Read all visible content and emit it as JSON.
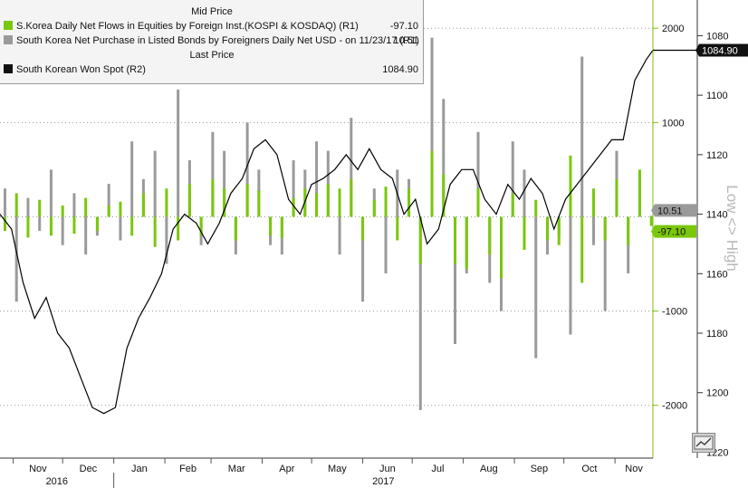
{
  "legend": {
    "header_mid": "Mid Price",
    "header_last": "Last Price",
    "entries": [
      {
        "swatch": "#7ac70c",
        "label": "S.Korea Daily Net Flows in Equities by Foreign Inst.(KOSPI & KOSDAQ)  (R1)",
        "value": "-97.10"
      },
      {
        "swatch": "#9a9a9a",
        "label": "South Korea Net Purchase in Listed Bonds by Foreigners Daily Net USD -  on 11/23/17  (R1)",
        "value": "10.51"
      },
      {
        "swatch": "#111111",
        "label": "South Korean Won Spot  (R2)",
        "value": "1084.90"
      }
    ]
  },
  "right_axis_r1": {
    "ticks": [
      2000,
      1000,
      -1000,
      -2000
    ],
    "tick_labels": [
      "2000",
      "1000",
      "-1000",
      "-2000"
    ],
    "ylim": [
      -2560,
      2300
    ]
  },
  "right_axis_r2": {
    "ticks": [
      1080,
      1100,
      1120,
      1140,
      1160,
      1180,
      1200,
      1220
    ],
    "tick_labels": [
      "1080",
      "1100",
      "1120",
      "1140",
      "1160",
      "1180",
      "1200",
      "1220"
    ],
    "ylim": [
      1222,
      1068
    ],
    "inverted": true,
    "title": "Low <> High"
  },
  "last_value_tags": [
    {
      "text": "1084.90",
      "bg": "#111111",
      "color": "#ffffff"
    },
    {
      "text": "10.51",
      "bg": "#9a9a9a",
      "color": "#111111"
    },
    {
      "text": "-97.10",
      "bg": "#7ac70c",
      "color": "#111111"
    }
  ],
  "x_axis": {
    "months": [
      "Nov",
      "Dec",
      "Jan",
      "Feb",
      "Mar",
      "Apr",
      "May",
      "Jun",
      "Jul",
      "Aug",
      "Sep",
      "Oct",
      "Nov"
    ],
    "years": [
      "2016",
      "2017"
    ]
  },
  "chart_data": {
    "type": "bar",
    "x_range": [
      "2016-10-24",
      "2017-11-24"
    ],
    "grid": true,
    "series": [
      {
        "axis": "R1",
        "type": "bar",
        "color": "#7ac70c",
        "sampled": "weekly",
        "x": [
          "2016-10-27",
          "2016-11-03",
          "2016-11-10",
          "2016-11-17",
          "2016-11-24",
          "2016-12-01",
          "2016-12-08",
          "2016-12-15",
          "2016-12-22",
          "2016-12-29",
          "2017-01-05",
          "2017-01-12",
          "2017-01-19",
          "2017-01-26",
          "2017-02-02",
          "2017-02-09",
          "2017-02-16",
          "2017-02-23",
          "2017-03-02",
          "2017-03-09",
          "2017-03-16",
          "2017-03-23",
          "2017-03-30",
          "2017-04-06",
          "2017-04-13",
          "2017-04-20",
          "2017-04-27",
          "2017-05-04",
          "2017-05-11",
          "2017-05-18",
          "2017-05-25",
          "2017-06-01",
          "2017-06-08",
          "2017-06-15",
          "2017-06-22",
          "2017-06-29",
          "2017-07-06",
          "2017-07-13",
          "2017-07-20",
          "2017-07-27",
          "2017-08-03",
          "2017-08-10",
          "2017-08-17",
          "2017-08-24",
          "2017-08-31",
          "2017-09-07",
          "2017-09-14",
          "2017-09-21",
          "2017-09-28",
          "2017-10-05",
          "2017-10-12",
          "2017-10-19",
          "2017-10-26",
          "2017-11-02",
          "2017-11-09",
          "2017-11-16",
          "2017-11-23"
        ],
        "values": [
          -150,
          250,
          -220,
          180,
          -200,
          120,
          -180,
          200,
          -150,
          120,
          160,
          -200,
          250,
          -320,
          300,
          -250,
          350,
          -200,
          400,
          300,
          -250,
          350,
          280,
          -200,
          -220,
          200,
          300,
          250,
          350,
          300,
          400,
          -250,
          180,
          320,
          -250,
          300,
          -500,
          700,
          450,
          -500,
          -550,
          300,
          -400,
          -650,
          250,
          -350,
          180,
          -250,
          -300,
          650,
          -700,
          300,
          -250,
          400,
          -300,
          500,
          -97.1
        ]
      },
      {
        "axis": "R1",
        "type": "bar",
        "color": "#9a9a9a",
        "sampled": "weekly",
        "x": [
          "2016-10-27",
          "2016-11-03",
          "2016-11-10",
          "2016-11-17",
          "2016-11-24",
          "2016-12-01",
          "2016-12-08",
          "2016-12-15",
          "2016-12-22",
          "2016-12-29",
          "2017-01-05",
          "2017-01-12",
          "2017-01-19",
          "2017-01-26",
          "2017-02-02",
          "2017-02-09",
          "2017-02-16",
          "2017-02-23",
          "2017-03-02",
          "2017-03-09",
          "2017-03-16",
          "2017-03-23",
          "2017-03-30",
          "2017-04-06",
          "2017-04-13",
          "2017-04-20",
          "2017-04-27",
          "2017-05-04",
          "2017-05-11",
          "2017-05-18",
          "2017-05-25",
          "2017-06-01",
          "2017-06-08",
          "2017-06-15",
          "2017-06-22",
          "2017-06-29",
          "2017-07-06",
          "2017-07-13",
          "2017-07-20",
          "2017-07-27",
          "2017-08-03",
          "2017-08-10",
          "2017-08-17",
          "2017-08-24",
          "2017-08-31",
          "2017-09-07",
          "2017-09-14",
          "2017-09-21",
          "2017-09-28",
          "2017-10-05",
          "2017-10-12",
          "2017-10-19",
          "2017-10-26",
          "2017-11-02",
          "2017-11-09",
          "2017-11-16",
          "2017-11-23"
        ],
        "values": [
          300,
          -900,
          200,
          -150,
          500,
          -300,
          250,
          -400,
          -200,
          350,
          -250,
          800,
          400,
          700,
          -500,
          1350,
          600,
          -300,
          900,
          700,
          -400,
          1000,
          500,
          -300,
          -400,
          600,
          500,
          800,
          700,
          -400,
          1050,
          -900,
          300,
          -600,
          500,
          400,
          -2050,
          1900,
          1250,
          -1350,
          -600,
          900,
          -700,
          -1000,
          800,
          500,
          -1500,
          -400,
          -200,
          -1250,
          1700,
          -300,
          -1000,
          700,
          -600,
          450,
          10.51
        ]
      },
      {
        "axis": "R2",
        "type": "line",
        "color": "#000000",
        "name": "South Korean Won Spot",
        "sampled": "weekly",
        "x": [
          "2016-10-24",
          "2016-10-31",
          "2016-11-07",
          "2016-11-14",
          "2016-11-21",
          "2016-11-28",
          "2016-12-05",
          "2016-12-12",
          "2016-12-19",
          "2016-12-26",
          "2017-01-02",
          "2017-01-09",
          "2017-01-16",
          "2017-01-23",
          "2017-01-30",
          "2017-02-06",
          "2017-02-13",
          "2017-02-20",
          "2017-02-27",
          "2017-03-06",
          "2017-03-13",
          "2017-03-20",
          "2017-03-27",
          "2017-04-03",
          "2017-04-10",
          "2017-04-17",
          "2017-04-24",
          "2017-05-01",
          "2017-05-08",
          "2017-05-15",
          "2017-05-22",
          "2017-05-29",
          "2017-06-05",
          "2017-06-12",
          "2017-06-19",
          "2017-06-26",
          "2017-07-03",
          "2017-07-10",
          "2017-07-17",
          "2017-07-24",
          "2017-07-31",
          "2017-08-07",
          "2017-08-14",
          "2017-08-21",
          "2017-08-28",
          "2017-09-04",
          "2017-09-11",
          "2017-09-18",
          "2017-09-25",
          "2017-10-02",
          "2017-10-09",
          "2017-10-16",
          "2017-10-23",
          "2017-10-30",
          "2017-11-06",
          "2017-11-13",
          "2017-11-20",
          "2017-11-24"
        ],
        "values": [
          1140,
          1145,
          1163,
          1175,
          1168,
          1180,
          1185,
          1195,
          1205,
          1207,
          1205,
          1185,
          1175,
          1168,
          1160,
          1145,
          1140,
          1143,
          1150,
          1143,
          1133,
          1128,
          1118,
          1115,
          1120,
          1135,
          1140,
          1130,
          1128,
          1125,
          1120,
          1125,
          1118,
          1125,
          1128,
          1140,
          1135,
          1150,
          1145,
          1130,
          1125,
          1125,
          1135,
          1140,
          1130,
          1135,
          1128,
          1133,
          1145,
          1135,
          1130,
          1125,
          1120,
          1115,
          1115,
          1095,
          1088,
          1084.9
        ]
      }
    ]
  }
}
